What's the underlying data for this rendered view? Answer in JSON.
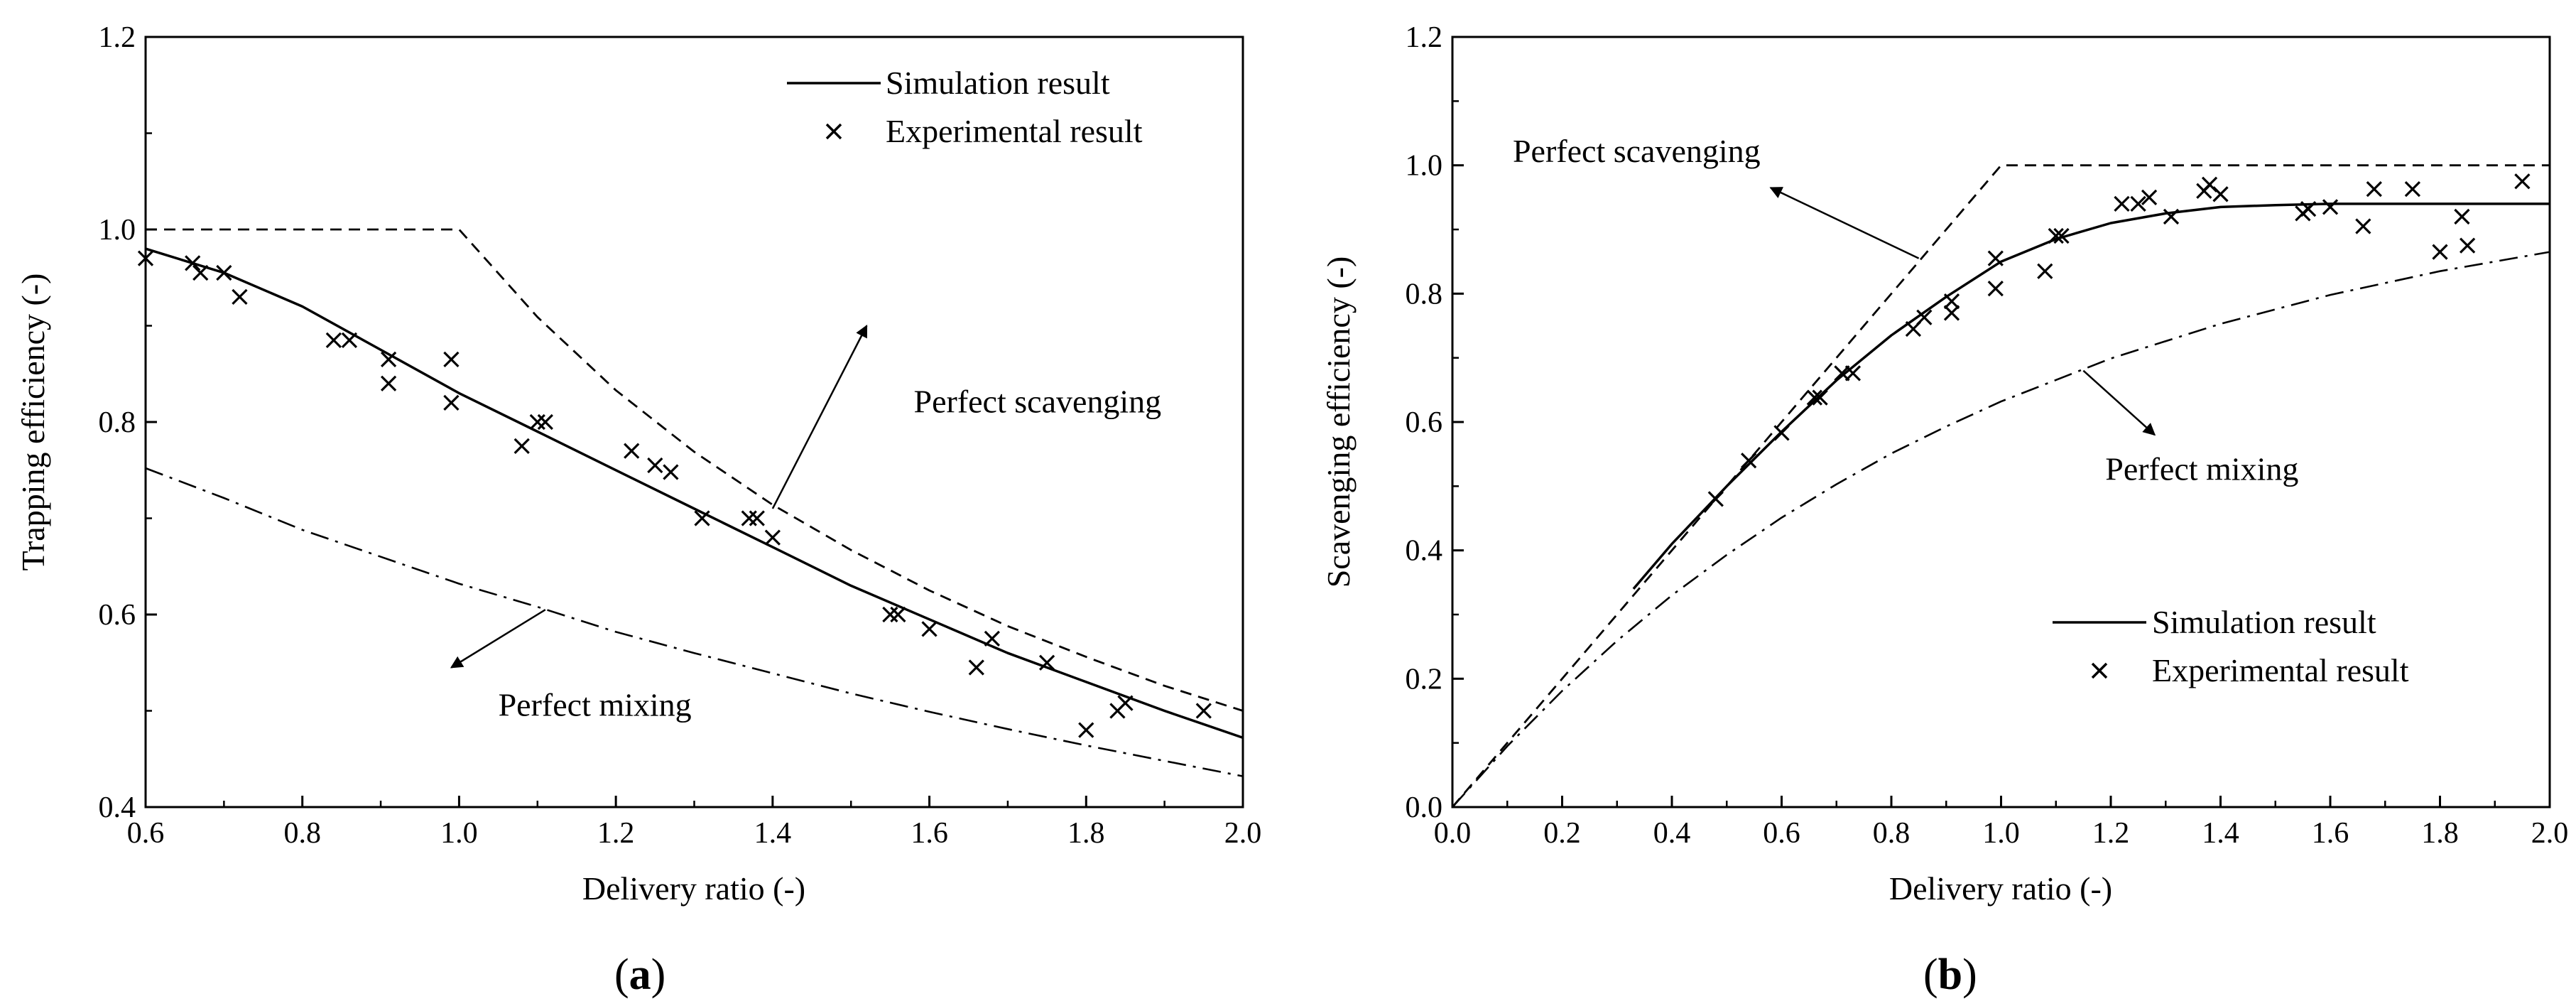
{
  "chart_data": [
    {
      "id": "a",
      "type": "line",
      "caption": {
        "open": "(",
        "letter": "a",
        "close": ")"
      },
      "xlabel": "Delivery ratio (-)",
      "ylabel": "Trapping efficiency (-)",
      "xlim": [
        0.6,
        2.0
      ],
      "ylim": [
        0.4,
        1.2
      ],
      "xticks": [
        0.6,
        0.8,
        1.0,
        1.2,
        1.4,
        1.6,
        1.8,
        2.0
      ],
      "yticks": [
        0.4,
        0.6,
        0.8,
        1.0,
        1.2
      ],
      "legend": {
        "position": "top-right",
        "entries": [
          "Simulation result",
          "Experimental result"
        ]
      },
      "series": [
        {
          "name": "Simulation result",
          "style": "solid",
          "x": [
            0.6,
            0.7,
            0.8,
            0.9,
            1.0,
            1.1,
            1.2,
            1.3,
            1.4,
            1.5,
            1.6,
            1.7,
            1.8,
            1.9,
            2.0
          ],
          "y": [
            0.98,
            0.955,
            0.92,
            0.875,
            0.83,
            0.79,
            0.75,
            0.71,
            0.67,
            0.63,
            0.595,
            0.56,
            0.53,
            0.5,
            0.472
          ]
        },
        {
          "name": "Experimental result",
          "style": "marker-x",
          "x": [
            0.6,
            0.66,
            0.67,
            0.7,
            0.72,
            0.84,
            0.86,
            0.91,
            0.91,
            0.99,
            0.99,
            1.08,
            1.1,
            1.11,
            1.22,
            1.25,
            1.27,
            1.31,
            1.37,
            1.38,
            1.4,
            1.55,
            1.56,
            1.6,
            1.66,
            1.68,
            1.75,
            1.8,
            1.84,
            1.85,
            1.95
          ],
          "y": [
            0.97,
            0.965,
            0.955,
            0.955,
            0.93,
            0.885,
            0.885,
            0.865,
            0.84,
            0.865,
            0.82,
            0.775,
            0.8,
            0.8,
            0.77,
            0.755,
            0.748,
            0.7,
            0.7,
            0.7,
            0.68,
            0.6,
            0.6,
            0.585,
            0.545,
            0.575,
            0.55,
            0.48,
            0.5,
            0.508,
            0.5
          ]
        },
        {
          "name": "Perfect scavenging",
          "style": "dash",
          "x": [
            0.6,
            1.0,
            1.1,
            1.2,
            1.3,
            1.4,
            1.5,
            1.6,
            1.7,
            1.8,
            1.9,
            2.0
          ],
          "y": [
            1.0,
            1.0,
            0.909,
            0.833,
            0.769,
            0.714,
            0.667,
            0.625,
            0.588,
            0.556,
            0.526,
            0.5
          ]
        },
        {
          "name": "Perfect mixing",
          "style": "dashdot",
          "x": [
            0.6,
            0.7,
            0.8,
            0.9,
            1.0,
            1.1,
            1.2,
            1.3,
            1.4,
            1.5,
            1.6,
            1.7,
            1.8,
            1.9,
            2.0
          ],
          "y": [
            0.752,
            0.721,
            0.688,
            0.66,
            0.632,
            0.608,
            0.582,
            0.56,
            0.539,
            0.518,
            0.499,
            0.481,
            0.464,
            0.448,
            0.432
          ]
        }
      ],
      "annotations": [
        {
          "text": "Perfect scavenging",
          "label_at": [
            1.58,
            0.81
          ],
          "arrow_from": [
            1.4,
            0.71
          ],
          "arrow_to": [
            1.52,
            0.9
          ]
        },
        {
          "text": "Perfect mixing",
          "label_at": [
            1.05,
            0.495
          ],
          "arrow_from": [
            1.11,
            0.605
          ],
          "arrow_to": [
            0.99,
            0.545
          ]
        }
      ]
    },
    {
      "id": "b",
      "type": "line",
      "caption": {
        "open": "(",
        "letter": "b",
        "close": ")"
      },
      "xlabel": "Delivery ratio (-)",
      "ylabel": "Scavenging efficiency (-)",
      "xlim": [
        0.0,
        2.0
      ],
      "ylim": [
        0.0,
        1.2
      ],
      "xticks": [
        0.0,
        0.2,
        0.4,
        0.6,
        0.8,
        1.0,
        1.2,
        1.4,
        1.6,
        1.8,
        2.0
      ],
      "yticks": [
        0.0,
        0.2,
        0.4,
        0.6,
        0.8,
        1.0,
        1.2
      ],
      "legend": {
        "position": "bottom-right",
        "entries": [
          "Simulation result",
          "Experimental result"
        ]
      },
      "series": [
        {
          "name": "Simulation result",
          "style": "solid",
          "x": [
            0.33,
            0.4,
            0.5,
            0.6,
            0.7,
            0.8,
            0.9,
            1.0,
            1.1,
            1.2,
            1.3,
            1.4,
            1.5,
            1.6,
            1.8,
            2.0
          ],
          "y": [
            0.34,
            0.41,
            0.5,
            0.585,
            0.665,
            0.735,
            0.795,
            0.85,
            0.885,
            0.91,
            0.925,
            0.935,
            0.938,
            0.94,
            0.94,
            0.94
          ]
        },
        {
          "name": "Experimental result",
          "style": "marker-x",
          "x": [
            0.48,
            0.54,
            0.6,
            0.66,
            0.67,
            0.71,
            0.73,
            0.84,
            0.86,
            0.91,
            0.91,
            0.99,
            0.99,
            1.08,
            1.1,
            1.11,
            1.22,
            1.25,
            1.27,
            1.31,
            1.37,
            1.38,
            1.4,
            1.55,
            1.56,
            1.6,
            1.66,
            1.68,
            1.75,
            1.8,
            1.84,
            1.85,
            1.95
          ],
          "y": [
            0.48,
            0.54,
            0.583,
            0.638,
            0.638,
            0.676,
            0.676,
            0.745,
            0.763,
            0.77,
            0.788,
            0.808,
            0.855,
            0.835,
            0.89,
            0.89,
            0.94,
            0.94,
            0.95,
            0.92,
            0.96,
            0.97,
            0.955,
            0.925,
            0.932,
            0.935,
            0.905,
            0.963,
            0.963,
            0.865,
            0.92,
            0.875,
            0.975
          ]
        },
        {
          "name": "Perfect scavenging",
          "style": "dash",
          "x": [
            0.0,
            1.0,
            2.0
          ],
          "y": [
            0.0,
            1.0,
            1.0
          ]
        },
        {
          "name": "Perfect mixing",
          "style": "dashdot",
          "x": [
            0.0,
            0.1,
            0.2,
            0.3,
            0.4,
            0.5,
            0.6,
            0.7,
            0.8,
            0.9,
            1.0,
            1.2,
            1.4,
            1.6,
            1.8,
            2.0
          ],
          "y": [
            0.0,
            0.095,
            0.181,
            0.259,
            0.33,
            0.393,
            0.451,
            0.503,
            0.551,
            0.593,
            0.632,
            0.699,
            0.753,
            0.798,
            0.835,
            0.865
          ]
        }
      ],
      "annotations": [
        {
          "text": "Perfect scavenging",
          "label_at": [
            0.11,
            1.005
          ],
          "arrow_from": [
            0.85,
            0.855
          ],
          "arrow_to": [
            0.58,
            0.965
          ]
        },
        {
          "text": "Perfect mixing",
          "label_at": [
            1.19,
            0.51
          ],
          "arrow_from": [
            1.15,
            0.68
          ],
          "arrow_to": [
            1.28,
            0.58
          ]
        }
      ]
    }
  ]
}
